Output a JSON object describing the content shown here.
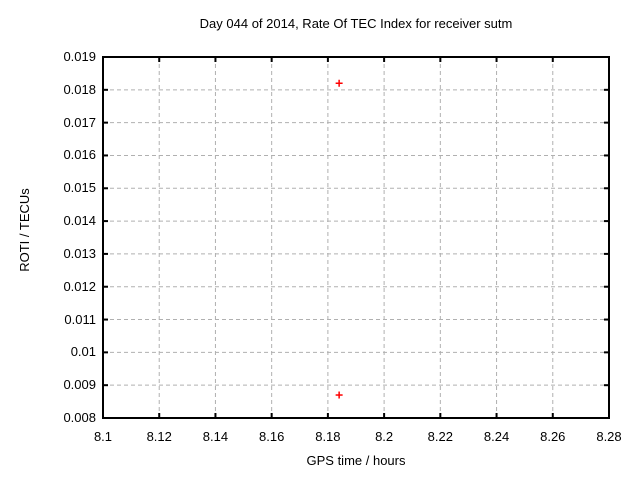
{
  "chart_data": {
    "type": "scatter",
    "title": "Day 044 of 2014, Rate Of TEC Index for receiver sutm",
    "xlabel": "GPS time / hours",
    "ylabel": "ROTI / TECUs",
    "xlim": [
      8.1,
      8.28
    ],
    "ylim": [
      0.008,
      0.019
    ],
    "x_ticks": [
      8.1,
      8.12,
      8.14,
      8.16,
      8.18,
      8.2,
      8.22,
      8.24,
      8.26,
      8.28
    ],
    "x_tick_labels": [
      "8.1",
      "8.12",
      "8.14",
      "8.16",
      "8.18",
      "8.2",
      "8.22",
      "8.24",
      "8.26",
      "8.28"
    ],
    "y_ticks": [
      0.008,
      0.009,
      0.01,
      0.011,
      0.012,
      0.013,
      0.014,
      0.015,
      0.016,
      0.017,
      0.018,
      0.019
    ],
    "y_tick_labels": [
      "0.008",
      "0.009",
      "0.01",
      "0.011",
      "0.012",
      "0.013",
      "0.014",
      "0.015",
      "0.016",
      "0.017",
      "0.018",
      "0.019"
    ],
    "grid": true,
    "legend": "none",
    "series": [
      {
        "name": "ROTI",
        "marker": "plus",
        "color": "#ff0000",
        "points": [
          {
            "x": 8.184,
            "y": 0.0182
          },
          {
            "x": 8.184,
            "y": 0.0087
          }
        ]
      }
    ],
    "colors": {
      "background": "#ffffff",
      "grid": "#b0b0b0",
      "axis": "#000000",
      "text": "#000000",
      "marker": "#ff0000"
    }
  }
}
